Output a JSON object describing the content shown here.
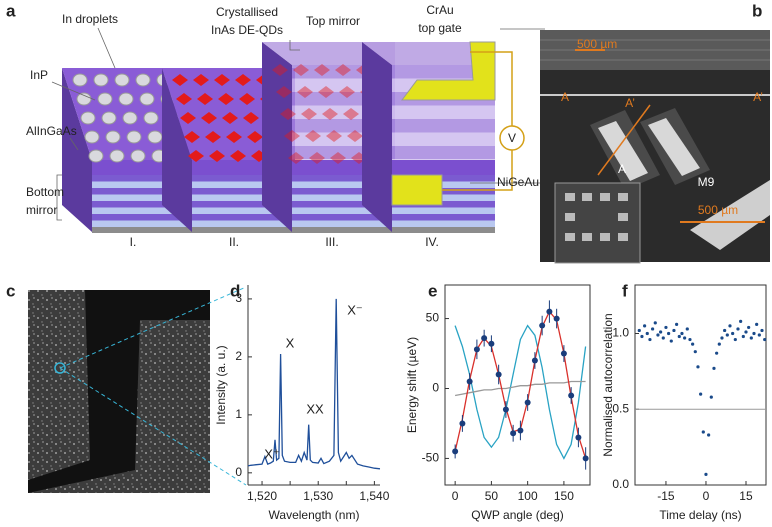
{
  "panel_labels": [
    "a",
    "b",
    "c",
    "d",
    "e",
    "f"
  ],
  "schematic": {
    "labels": {
      "in_droplets": "In droplets",
      "inp": "InP",
      "alingaas": "AlInGaAs",
      "bottom_mirror": [
        "Bottom",
        "mirror"
      ],
      "qds": [
        "Crystallised",
        "InAs DE-QDs"
      ],
      "top_mirror": "Top mirror",
      "top_gate": [
        "CrAu",
        "top gate"
      ],
      "bottom_contact": "NiGeAu",
      "voltage": "V"
    },
    "steps": [
      "I.",
      "II.",
      "III.",
      "IV."
    ]
  },
  "micrograph": {
    "scale_bar": "500 µm",
    "section_start": "A",
    "section_end": "A’",
    "cut_end": "A’",
    "cut_start": "A",
    "device_label": "M9",
    "inset_scale_bar": "500 µm"
  },
  "chart_data": [
    {
      "type": "line",
      "xlabel": "Wavelength (nm)",
      "ylabel": "Intensity (a. u.)",
      "x": [
        1517.5,
        1518,
        1519,
        1520,
        1520.5,
        1521,
        1521.5,
        1522,
        1522.3,
        1522.6,
        1523,
        1523.3,
        1523.6,
        1524,
        1525,
        1526,
        1526.5,
        1527,
        1527.5,
        1528,
        1528.3,
        1528.6,
        1529,
        1530,
        1530.5,
        1531,
        1532,
        1532.8,
        1533.2,
        1533.6,
        1534,
        1535,
        1535.5,
        1536,
        1537,
        1538,
        1539,
        1540,
        1541
      ],
      "series": [
        {
          "color": "#1f4f9a",
          "style": "line",
          "values": [
            0.12,
            0.13,
            0.14,
            0.15,
            0.28,
            0.15,
            0.17,
            0.2,
            0.57,
            0.22,
            0.25,
            2.05,
            0.3,
            0.2,
            0.18,
            0.18,
            0.3,
            0.2,
            0.35,
            0.22,
            0.83,
            0.22,
            0.18,
            0.17,
            0.25,
            0.16,
            0.2,
            0.3,
            3.0,
            0.35,
            0.2,
            0.35,
            0.25,
            0.3,
            0.15,
            0.12,
            0.1,
            0.08,
            0.07
          ]
        }
      ],
      "annotations": [
        "X⁺",
        "X",
        "XX",
        "X⁻"
      ],
      "xlim": [
        1517.5,
        1541
      ],
      "ylim": [
        -0.21,
        3.24
      ],
      "xticks": [
        {
          "value": 1520,
          "label": "1,520"
        },
        {
          "value": 1525,
          "label": ""
        },
        {
          "value": 1530,
          "label": "1,530"
        },
        {
          "value": 1535,
          "label": ""
        },
        {
          "value": 1540,
          "label": "1,540"
        }
      ],
      "yticks": [
        0,
        1,
        2,
        3
      ]
    },
    {
      "type": "line",
      "xlabel": "QWP angle (deg)",
      "ylabel": "Energy shift (µeV)",
      "x": [
        0,
        10,
        20,
        30,
        40,
        50,
        60,
        70,
        80,
        90,
        100,
        110,
        120,
        130,
        140,
        150,
        160,
        170,
        180
      ],
      "series": [
        {
          "color": "#29a3c4",
          "style": "line",
          "values": [
            45,
            30,
            10,
            -15,
            -35,
            -42,
            -35,
            -15,
            10,
            35,
            45,
            38,
            15,
            -15,
            -40,
            -50,
            -40,
            -10,
            30
          ]
        },
        {
          "color": "#999999",
          "style": "line",
          "values": [
            -5,
            -4,
            -3,
            -2,
            -1,
            -1,
            0,
            0,
            1,
            2,
            2,
            3,
            3,
            4,
            4,
            4,
            5,
            5,
            5
          ]
        },
        {
          "color": "#d9302b",
          "style": "line",
          "values": [
            -45,
            -22,
            6,
            28,
            36,
            30,
            10,
            -14,
            -31,
            -29,
            -9,
            20,
            44,
            55,
            49,
            25,
            -6,
            -34,
            -50
          ]
        },
        {
          "color": "#1a3d7c",
          "style": "points",
          "values": [
            -45,
            -25,
            5,
            28,
            36,
            32,
            10,
            -15,
            -32,
            -30,
            -10,
            20,
            45,
            55,
            50,
            25,
            -5,
            -35,
            -50
          ],
          "errors": [
            5,
            6,
            6,
            7,
            6,
            6,
            7,
            6,
            6,
            7,
            6,
            6,
            7,
            8,
            7,
            6,
            6,
            7,
            8
          ]
        }
      ],
      "xlim": [
        -14,
        186
      ],
      "ylim": [
        -69,
        74
      ],
      "xticks": [
        0,
        50,
        100,
        150
      ],
      "yticks": [
        -50,
        0,
        50
      ]
    },
    {
      "type": "scatter",
      "xlabel": "Time delay (ns)",
      "ylabel": "Normalised autocorrelation",
      "x": [
        -25,
        -24,
        -23,
        -22,
        -21,
        -20,
        -19,
        -18,
        -17,
        -16,
        -15,
        -14,
        -13,
        -12,
        -11,
        -10,
        -9,
        -8,
        -7,
        -6,
        -5,
        -4,
        -3,
        -2,
        -1,
        0,
        1,
        2,
        3,
        4,
        5,
        6,
        7,
        8,
        9,
        10,
        11,
        12,
        13,
        14,
        15,
        16,
        17,
        18,
        19,
        20,
        21,
        22
      ],
      "series": [
        {
          "color": "#1a4a8a",
          "style": "points",
          "values": [
            1.02,
            0.98,
            1.05,
            1.0,
            0.96,
            1.03,
            1.07,
            0.99,
            1.01,
            0.97,
            1.04,
            1.0,
            0.95,
            1.02,
            1.06,
            0.98,
            1.0,
            0.97,
            1.03,
            0.96,
            0.93,
            0.88,
            0.78,
            0.6,
            0.35,
            0.07,
            0.33,
            0.58,
            0.77,
            0.87,
            0.93,
            0.97,
            1.02,
            0.99,
            1.05,
            1.0,
            0.96,
            1.03,
            1.08,
            0.98,
            1.01,
            1.04,
            0.97,
            1.0,
            1.06,
            0.99,
            1.02,
            0.96
          ]
        }
      ],
      "reference_line": 0.5,
      "xlim": [
        -26.6,
        22.5
      ],
      "ylim": [
        0,
        1.32
      ],
      "xticks": [
        -15,
        0,
        15
      ],
      "yticks": [
        {
          "value": 0,
          "label": "0.0"
        },
        0.5,
        {
          "value": 1,
          "label": "1.0"
        }
      ]
    }
  ]
}
